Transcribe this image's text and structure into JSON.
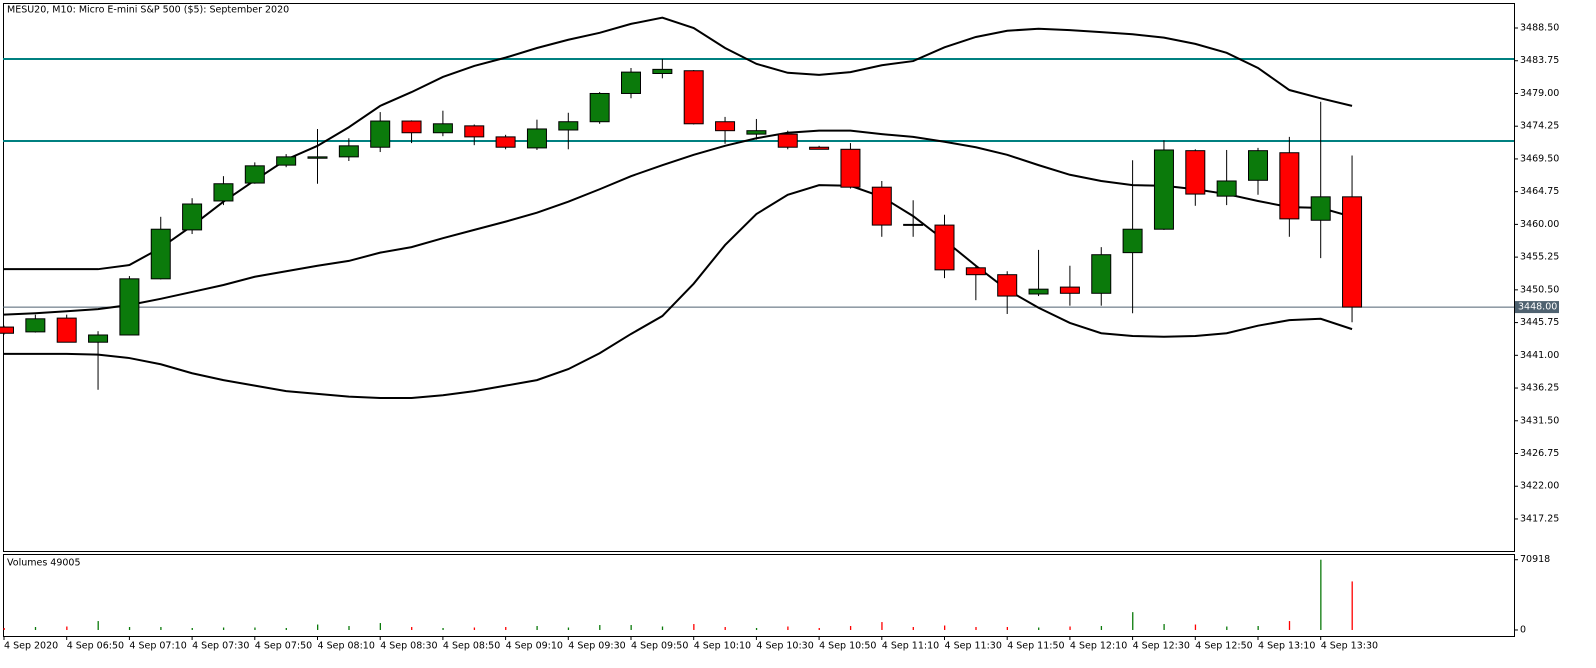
{
  "chart_data": [
    {
      "type": "candlestick",
      "title": "MESU20, M10:  Micro E-mini S&P 500 ($5): September 2020",
      "categories": [
        "4 Sep 2020",
        null,
        "4 Sep 06:50",
        null,
        "4 Sep 07:10",
        null,
        "4 Sep 07:30",
        null,
        "4 Sep 07:50",
        null,
        "4 Sep 08:10",
        null,
        "4 Sep 08:30",
        null,
        "4 Sep 08:50",
        null,
        "4 Sep 09:10",
        null,
        "4 Sep 09:30",
        null,
        "4 Sep 09:50",
        null,
        "4 Sep 10:10",
        null,
        "4 Sep 10:30",
        null,
        "4 Sep 10:50",
        null,
        "4 Sep 11:10",
        null,
        "4 Sep 11:30",
        null,
        "4 Sep 11:50",
        null,
        "4 Sep 12:10",
        null,
        "4 Sep 12:30",
        null,
        "4 Sep 12:50",
        null,
        "4 Sep 13:10",
        null,
        "4 Sep 13:30",
        null
      ],
      "open": [
        3445.1,
        3444.4,
        3446.4,
        3442.9,
        3443.95,
        3452.1,
        3459.2,
        3463.4,
        3466.0,
        3468.6,
        3469.6,
        3469.8,
        3471.2,
        3475.0,
        3473.3,
        3474.3,
        3472.7,
        3471.1,
        3473.7,
        3474.9,
        3479.0,
        3481.9,
        3482.3,
        3474.9,
        3473.1,
        3473.1,
        3471.2,
        3470.9,
        3465.4,
        3460.0,
        3459.9,
        3453.7,
        3452.7,
        3449.9,
        3450.9,
        3450.0,
        3455.9,
        3459.3,
        3470.7,
        3464.1,
        3466.4,
        3470.4,
        3460.6,
        3464.0
      ],
      "high": [
        3445.3,
        3446.9,
        3446.9,
        3444.5,
        3452.5,
        3461.1,
        3463.8,
        3467.0,
        3469.0,
        3470.2,
        3473.85,
        3472.5,
        3476.3,
        3475.1,
        3476.5,
        3474.5,
        3473.0,
        3475.2,
        3476.2,
        3479.2,
        3482.7,
        3484.0,
        3482.4,
        3475.6,
        3475.3,
        3473.6,
        3471.4,
        3471.8,
        3466.3,
        3463.5,
        3461.4,
        3454.1,
        3453.2,
        3456.3,
        3454.0,
        3456.7,
        3469.3,
        3472.2,
        3470.9,
        3470.8,
        3471.1,
        3472.7,
        3477.8,
        3470.0
      ],
      "low": [
        3444.0,
        3444.3,
        3442.9,
        3436.0,
        3443.9,
        3452.0,
        3458.6,
        3462.8,
        3465.9,
        3468.3,
        3465.9,
        3469.2,
        3470.5,
        3471.8,
        3472.8,
        3471.5,
        3470.9,
        3470.8,
        3470.9,
        3474.6,
        3478.3,
        3481.2,
        3474.5,
        3471.7,
        3472.3,
        3470.9,
        3470.9,
        3465.2,
        3458.2,
        3458.2,
        3452.2,
        3449.0,
        3447.0,
        3449.6,
        3448.2,
        3448.2,
        3447.1,
        3459.2,
        3462.7,
        3462.8,
        3464.3,
        3458.2,
        3455.1,
        3445.8
      ],
      "close": [
        3444.2,
        3446.3,
        3442.9,
        3443.95,
        3452.1,
        3459.3,
        3462.96,
        3465.9,
        3468.5,
        3469.8,
        3469.8,
        3471.4,
        3475.0,
        3473.3,
        3474.6,
        3472.7,
        3471.2,
        3473.85,
        3474.9,
        3479.0,
        3482.1,
        3482.5,
        3474.6,
        3473.6,
        3473.6,
        3471.2,
        3470.9,
        3465.4,
        3459.9,
        3459.9,
        3453.4,
        3452.7,
        3449.6,
        3450.6,
        3450.0,
        3455.6,
        3459.3,
        3470.8,
        3464.4,
        3466.3,
        3470.7,
        3460.8,
        3464.0,
        3448.0
      ],
      "up_color": "#0b7a0b",
      "down_color": "#ff0000",
      "bands": [
        {
          "color": "#000000",
          "values": [
            3453.5,
            3453.5,
            3453.5,
            3453.5,
            3454.1,
            3456.6,
            3459.8,
            3463.3,
            3466.4,
            3469.4,
            3471.4,
            3474.1,
            3477.2,
            3479.2,
            3481.4,
            3483.0,
            3484.2,
            3485.6,
            3486.8,
            3487.8,
            3489.1,
            3490.0,
            3488.5,
            3485.6,
            3483.3,
            3482.0,
            3481.7,
            3482.1,
            3483.1,
            3483.7,
            3485.7,
            3487.2,
            3488.1,
            3488.4,
            3488.2,
            3487.9,
            3487.6,
            3487.1,
            3486.2,
            3484.9,
            3482.7,
            3479.5,
            3478.3,
            3477.2
          ]
        },
        {
          "color": "#000000",
          "values": [
            3446.9,
            3447.1,
            3447.4,
            3447.7,
            3448.3,
            3449.2,
            3450.2,
            3451.2,
            3452.4,
            3453.2,
            3454.0,
            3454.7,
            3455.9,
            3456.7,
            3458.0,
            3459.2,
            3460.4,
            3461.7,
            3463.3,
            3465.1,
            3467.0,
            3468.6,
            3470.1,
            3471.4,
            3472.5,
            3473.3,
            3473.6,
            3473.6,
            3473.1,
            3472.7,
            3472.0,
            3471.2,
            3470.1,
            3468.6,
            3467.2,
            3466.3,
            3465.7,
            3465.6,
            3465.1,
            3464.4,
            3463.4,
            3462.5,
            3462.4,
            3461.1
          ]
        },
        {
          "color": "#000000",
          "values": [
            3441.2,
            3441.2,
            3441.2,
            3441.1,
            3440.6,
            3439.7,
            3438.4,
            3437.4,
            3436.6,
            3435.8,
            3435.4,
            3435.0,
            3434.8,
            3434.8,
            3435.2,
            3435.8,
            3436.6,
            3437.4,
            3439.0,
            3441.3,
            3444.1,
            3446.7,
            3451.4,
            3457.0,
            3461.5,
            3464.3,
            3465.7,
            3465.6,
            3464.0,
            3461.2,
            3457.7,
            3454.0,
            3450.5,
            3447.9,
            3445.7,
            3444.2,
            3443.8,
            3443.7,
            3443.8,
            3444.2,
            3445.3,
            3446.1,
            3446.3,
            3444.8
          ]
        }
      ],
      "hlines": [
        {
          "value": 3484.0,
          "color": "#008080"
        },
        {
          "value": 3472.1,
          "color": "#008080"
        }
      ],
      "current_price": {
        "value": 3448.0,
        "label": "3448.00",
        "color": "#4f6270"
      },
      "ylim": [
        3412.6,
        3492.13
      ],
      "yticks": [
        {
          "value": 3488.5,
          "label": "3488.50"
        },
        {
          "value": 3483.75,
          "label": "3483.75"
        },
        {
          "value": 3479.0,
          "label": "3479.00"
        },
        {
          "value": 3474.25,
          "label": "3474.25"
        },
        {
          "value": 3469.5,
          "label": "3469.50"
        },
        {
          "value": 3464.75,
          "label": "3464.75"
        },
        {
          "value": 3460.0,
          "label": "3460.00"
        },
        {
          "value": 3455.25,
          "label": "3455.25"
        },
        {
          "value": 3450.5,
          "label": "3450.50"
        },
        {
          "value": 3445.75,
          "label": "3445.75"
        },
        {
          "value": 3441.0,
          "label": "3441.00"
        },
        {
          "value": 3436.25,
          "label": "3436.25"
        },
        {
          "value": 3431.5,
          "label": "3431.50"
        },
        {
          "value": 3426.75,
          "label": "3426.75"
        },
        {
          "value": 3422.0,
          "label": "3422.00"
        },
        {
          "value": 3417.25,
          "label": "3417.25"
        }
      ]
    },
    {
      "type": "bar",
      "title": "Volumes 49005",
      "values": [
        2000,
        3000,
        3500,
        9000,
        3000,
        3000,
        2000,
        2500,
        2500,
        2000,
        5500,
        4000,
        7000,
        3000,
        2000,
        2500,
        3000,
        4000,
        2500,
        5000,
        5000,
        3500,
        6000,
        3000,
        2000,
        3500,
        2000,
        4000,
        8000,
        3000,
        4500,
        3000,
        3000,
        2500,
        3500,
        4000,
        18000,
        6000,
        5500,
        3500,
        4000,
        9000,
        70918,
        49005
      ],
      "ylim": [
        -6080,
        76700
      ],
      "yticks": [
        70918,
        0
      ]
    }
  ]
}
